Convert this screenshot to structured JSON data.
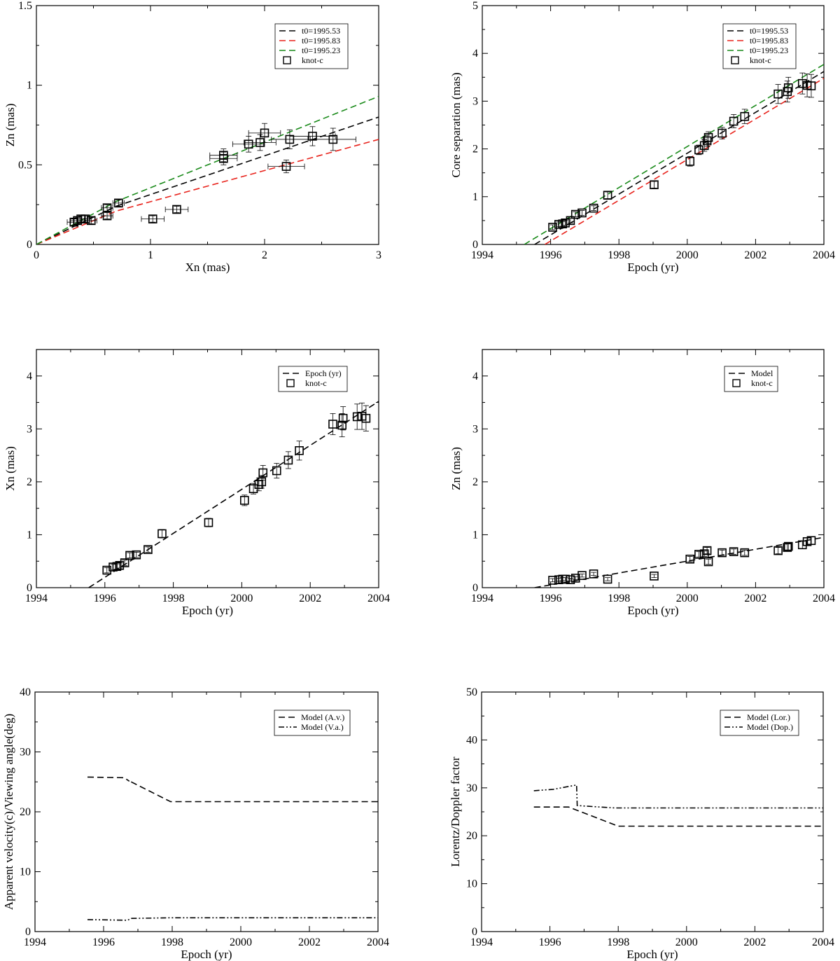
{
  "chart_data": [
    {
      "type": "scatter",
      "title": "",
      "xlabel": "Xn (mas)",
      "ylabel": "Zn (mas)",
      "xlim": [
        0,
        3
      ],
      "ylim": [
        0,
        1.5
      ],
      "xticks": [
        "0",
        "1",
        "2",
        "3"
      ],
      "yticks": [
        "0",
        "0.5",
        "1",
        "1.5"
      ],
      "xtick_values": [
        0,
        1,
        2,
        3
      ],
      "ytick_values": [
        0,
        0.5,
        1,
        1.5
      ],
      "legend_position": "top-right",
      "series": [
        {
          "name": "t0=1995.53",
          "kind": "line",
          "color": "#000000",
          "dash": "dash",
          "x": [
            0,
            0.7,
            3
          ],
          "y": [
            0,
            0.24,
            0.8
          ]
        },
        {
          "name": "t0=1995.83",
          "kind": "line",
          "color": "#e8221b",
          "dash": "dash",
          "x": [
            0,
            0.7,
            3
          ],
          "y": [
            0,
            0.21,
            0.66
          ]
        },
        {
          "name": "t0=1995.23",
          "kind": "line",
          "color": "#1a8a1a",
          "dash": "dash",
          "x": [
            0,
            0.7,
            3
          ],
          "y": [
            0,
            0.27,
            0.93
          ]
        },
        {
          "name": "knot-c",
          "kind": "points",
          "color": "#000000",
          "x": [
            0.33,
            0.36,
            0.39,
            0.43,
            0.48,
            0.62,
            0.62,
            0.72,
            1.02,
            1.23,
            1.64,
            1.64,
            1.86,
            1.96,
            2.0,
            2.19,
            2.22,
            2.42,
            2.6
          ],
          "y": [
            0.14,
            0.15,
            0.16,
            0.16,
            0.15,
            0.18,
            0.23,
            0.26,
            0.16,
            0.22,
            0.54,
            0.56,
            0.63,
            0.64,
            0.7,
            0.49,
            0.66,
            0.68,
            0.66
          ],
          "xerr": [
            0.06,
            0.06,
            0.06,
            0.05,
            0.05,
            0.05,
            0.05,
            0.05,
            0.1,
            0.1,
            0.12,
            0.12,
            0.14,
            0.14,
            0.14,
            0.16,
            0.16,
            0.2,
            0.2
          ],
          "yerr": [
            0.02,
            0.02,
            0.02,
            0.02,
            0.02,
            0.02,
            0.02,
            0.02,
            0.02,
            0.02,
            0.04,
            0.04,
            0.05,
            0.05,
            0.06,
            0.04,
            0.06,
            0.06,
            0.07
          ]
        }
      ]
    },
    {
      "type": "scatter",
      "title": "",
      "xlabel": "Epoch (yr)",
      "ylabel": "Core separation (mas)",
      "xlim": [
        1994,
        2004
      ],
      "ylim": [
        0,
        5
      ],
      "xticks": [
        "1994",
        "1996",
        "1998",
        "2000",
        "2002",
        "2004"
      ],
      "yticks": [
        "0",
        "1",
        "2",
        "3",
        "4",
        "5"
      ],
      "xtick_values": [
        1994,
        1996,
        1998,
        2000,
        2002,
        2004
      ],
      "ytick_values": [
        0,
        1,
        2,
        3,
        4,
        5
      ],
      "legend_position": "top-right",
      "series": [
        {
          "name": "t0=1995.53",
          "kind": "line",
          "color": "#000000",
          "dash": "dash",
          "x": [
            1995.53,
            2004
          ],
          "y": [
            0,
            3.62
          ]
        },
        {
          "name": "t0=1995.83",
          "kind": "line",
          "color": "#e8221b",
          "dash": "dash",
          "x": [
            1995.83,
            2004
          ],
          "y": [
            0,
            3.48
          ]
        },
        {
          "name": "t0=1995.23",
          "kind": "line",
          "color": "#1a8a1a",
          "dash": "dash",
          "x": [
            1995.23,
            2004
          ],
          "y": [
            0,
            3.77
          ]
        },
        {
          "name": "knot-c",
          "kind": "points",
          "color": "#000000",
          "x": [
            1996.06,
            1996.24,
            1996.35,
            1996.43,
            1996.58,
            1996.73,
            1996.92,
            1997.26,
            1997.67,
            1999.03,
            2000.08,
            2000.34,
            2000.5,
            2000.58,
            2000.62,
            2001.02,
            2001.36,
            2001.68,
            2002.66,
            2002.93,
            2002.96,
            2003.37,
            2003.51,
            2003.63
          ],
          "y": [
            0.36,
            0.42,
            0.43,
            0.45,
            0.5,
            0.63,
            0.66,
            0.76,
            1.03,
            1.25,
            1.74,
            1.98,
            2.07,
            2.17,
            2.24,
            2.33,
            2.58,
            2.68,
            3.15,
            3.2,
            3.28,
            3.37,
            3.33,
            3.32
          ],
          "yerr": [
            0.05,
            0.05,
            0.05,
            0.05,
            0.05,
            0.05,
            0.05,
            0.05,
            0.07,
            0.07,
            0.1,
            0.1,
            0.12,
            0.12,
            0.12,
            0.12,
            0.14,
            0.15,
            0.2,
            0.22,
            0.22,
            0.22,
            0.24,
            0.24
          ]
        }
      ]
    },
    {
      "type": "scatter",
      "title": "",
      "xlabel": "Epoch (yr)",
      "ylabel": "Xn (mas)",
      "xlim": [
        1994,
        2004
      ],
      "ylim": [
        0,
        4.5
      ],
      "xticks": [
        "1994",
        "1996",
        "1998",
        "2000",
        "2002",
        "2004"
      ],
      "yticks": [
        "0",
        "1",
        "2",
        "3",
        "4"
      ],
      "xtick_values": [
        1994,
        1996,
        1998,
        2000,
        2002,
        2004
      ],
      "ytick_values": [
        0,
        1,
        2,
        3,
        4
      ],
      "legend_position": "top-right",
      "series": [
        {
          "name": "Epoch (yr)",
          "kind": "line",
          "color": "#000000",
          "dash": "dash",
          "x": [
            1995.53,
            2004
          ],
          "y": [
            0,
            3.52
          ]
        },
        {
          "name": "knot-c",
          "kind": "points",
          "color": "#000000",
          "x": [
            1996.06,
            1996.24,
            1996.35,
            1996.43,
            1996.58,
            1996.73,
            1996.92,
            1997.26,
            1997.67,
            1999.03,
            2000.08,
            2000.34,
            2000.5,
            2000.58,
            2000.62,
            2001.02,
            2001.36,
            2001.68,
            2002.66,
            2002.93,
            2002.96,
            2003.37,
            2003.51,
            2003.63
          ],
          "y": [
            0.33,
            0.39,
            0.4,
            0.42,
            0.47,
            0.61,
            0.62,
            0.72,
            1.02,
            1.23,
            1.65,
            1.87,
            1.95,
            2.0,
            2.17,
            2.21,
            2.41,
            2.59,
            3.09,
            3.07,
            3.2,
            3.23,
            3.24,
            3.2
          ],
          "yerr": [
            0.05,
            0.05,
            0.05,
            0.05,
            0.05,
            0.05,
            0.05,
            0.05,
            0.08,
            0.08,
            0.1,
            0.1,
            0.12,
            0.12,
            0.14,
            0.14,
            0.16,
            0.18,
            0.2,
            0.22,
            0.22,
            0.24,
            0.25,
            0.24
          ]
        }
      ]
    },
    {
      "type": "scatter",
      "title": "",
      "xlabel": "Epoch (yr)",
      "ylabel": "Zn (mas)",
      "xlim": [
        1994,
        2004
      ],
      "ylim": [
        0,
        4.5
      ],
      "xticks": [
        "1994",
        "1996",
        "1998",
        "2000",
        "2002",
        "2004"
      ],
      "yticks": [
        "0",
        "1",
        "2",
        "3",
        "4"
      ],
      "xtick_values": [
        1994,
        1996,
        1998,
        2000,
        2002,
        2004
      ],
      "ytick_values": [
        0,
        1,
        2,
        3,
        4
      ],
      "legend_position": "top-right",
      "series": [
        {
          "name": "Model",
          "kind": "line",
          "color": "#000000",
          "dash": "dash",
          "x": [
            1995.53,
            2004
          ],
          "y": [
            0,
            0.95
          ]
        },
        {
          "name": "knot-c",
          "kind": "points",
          "color": "#000000",
          "x": [
            1996.06,
            1996.24,
            1996.35,
            1996.43,
            1996.58,
            1996.73,
            1996.92,
            1997.26,
            1997.67,
            1999.03,
            2000.08,
            2000.34,
            2000.5,
            2000.58,
            2000.62,
            2001.02,
            2001.36,
            2001.68,
            2002.66,
            2002.93,
            2002.96,
            2003.37,
            2003.51,
            2003.63
          ],
          "y": [
            0.14,
            0.15,
            0.16,
            0.16,
            0.15,
            0.18,
            0.23,
            0.26,
            0.16,
            0.22,
            0.54,
            0.63,
            0.64,
            0.7,
            0.49,
            0.66,
            0.68,
            0.66,
            0.7,
            0.76,
            0.78,
            0.81,
            0.87,
            0.89
          ],
          "yerr": [
            0.03,
            0.03,
            0.03,
            0.03,
            0.03,
            0.03,
            0.03,
            0.03,
            0.03,
            0.03,
            0.05,
            0.05,
            0.05,
            0.06,
            0.05,
            0.05,
            0.05,
            0.05,
            0.06,
            0.07,
            0.07,
            0.07,
            0.07,
            0.07
          ]
        }
      ]
    },
    {
      "type": "line",
      "title": "",
      "xlabel": "Epoch (yr)",
      "ylabel": "Apparent velocity(c)/Viewing angle(deg)",
      "xlim": [
        1994,
        2004
      ],
      "ylim": [
        0,
        40
      ],
      "xticks": [
        "1994",
        "1996",
        "1998",
        "2000",
        "2002",
        "2004"
      ],
      "yticks": [
        "0",
        "10",
        "20",
        "30",
        "40"
      ],
      "xtick_values": [
        1994,
        1996,
        1998,
        2000,
        2002,
        2004
      ],
      "ytick_values": [
        0,
        10,
        20,
        30,
        40
      ],
      "legend_position": "top-right",
      "series": [
        {
          "name": "Model (A.v.)",
          "kind": "line",
          "color": "#000000",
          "dash": "dash",
          "x": [
            1995.53,
            1996.6,
            1996.75,
            1996.7,
            1997.95,
            2004
          ],
          "y": [
            25.8,
            25.7,
            25.1,
            25.3,
            21.7,
            21.7
          ]
        },
        {
          "name": "Model (V.a.)",
          "kind": "line",
          "color": "#000000",
          "dash": "dashdotdot",
          "x": [
            1995.53,
            1996.7,
            1996.8,
            1998,
            2004
          ],
          "y": [
            2.0,
            1.9,
            2.2,
            2.3,
            2.3
          ]
        }
      ]
    },
    {
      "type": "line",
      "title": "",
      "xlabel": "Epoch (yr)",
      "ylabel": "Lorentz/Doppler factor",
      "xlim": [
        1994,
        2004
      ],
      "ylim": [
        0,
        50
      ],
      "xticks": [
        "1994",
        "1996",
        "1998",
        "2000",
        "2002",
        "2004"
      ],
      "yticks": [
        "0",
        "10",
        "20",
        "30",
        "40",
        "50"
      ],
      "xtick_values": [
        1994,
        1996,
        1998,
        2000,
        2002,
        2004
      ],
      "ytick_values": [
        0,
        10,
        20,
        30,
        40,
        50
      ],
      "legend_position": "top-right",
      "series": [
        {
          "name": "Model (Lor.)",
          "kind": "line",
          "color": "#000000",
          "dash": "dash",
          "x": [
            1995.53,
            1996.55,
            1998,
            2004
          ],
          "y": [
            26,
            26,
            22,
            22
          ]
        },
        {
          "name": "Model (Dop.)",
          "kind": "line",
          "color": "#000000",
          "dash": "dashdotdot",
          "x": [
            1995.53,
            1996.1,
            1996.78,
            1996.8,
            1997.9,
            2004
          ],
          "y": [
            29.4,
            29.7,
            30.6,
            26.3,
            25.8,
            25.8
          ]
        }
      ]
    }
  ]
}
